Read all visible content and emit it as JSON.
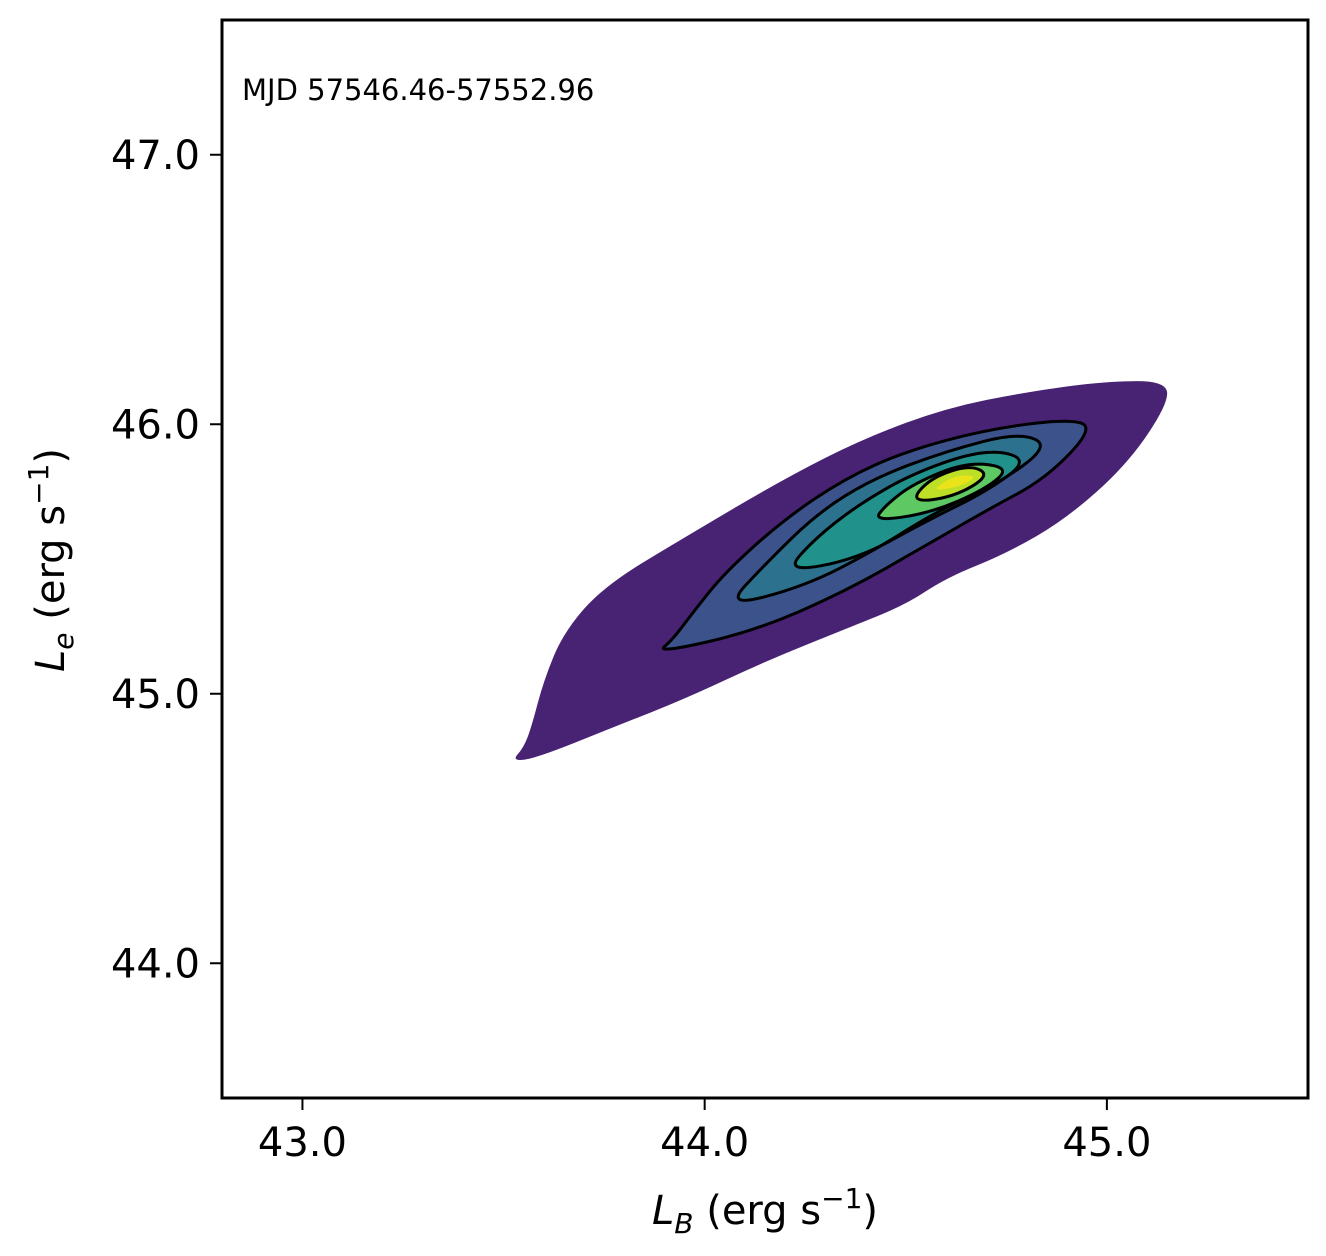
{
  "chart_data": {
    "type": "contour",
    "annotation": "MJD 57546.46-57552.96",
    "xlabel": {
      "symbol": "L",
      "subscript": "B",
      "unit": " (erg s",
      "exponent": "−1",
      "close": ")"
    },
    "ylabel": {
      "symbol": "L",
      "subscript": "e",
      "unit": " (erg s",
      "exponent": "−1",
      "close": ")"
    },
    "xlim": [
      42.8,
      45.5
    ],
    "ylim": [
      43.5,
      47.5
    ],
    "xticks": [
      43.0,
      44.0,
      45.0
    ],
    "xtick_labels": [
      "43.0",
      "44.0",
      "45.0"
    ],
    "yticks": [
      44.0,
      45.0,
      46.0,
      47.0
    ],
    "ytick_labels": [
      "44.0",
      "45.0",
      "46.0",
      "47.0"
    ],
    "colormap": "viridis",
    "grid": false,
    "levels": [
      {
        "level": 1,
        "fill": "#482374",
        "outlined": false,
        "polygon": [
          [
            43.52,
            44.75
          ],
          [
            43.58,
            44.76
          ],
          [
            43.78,
            44.88
          ],
          [
            43.95,
            44.98
          ],
          [
            44.15,
            45.12
          ],
          [
            44.35,
            45.24
          ],
          [
            44.5,
            45.33
          ],
          [
            44.6,
            45.43
          ],
          [
            44.75,
            45.52
          ],
          [
            44.9,
            45.65
          ],
          [
            45.05,
            45.85
          ],
          [
            45.15,
            46.07
          ],
          [
            45.15,
            46.16
          ],
          [
            45.0,
            46.16
          ],
          [
            44.8,
            46.12
          ],
          [
            44.6,
            46.06
          ],
          [
            44.4,
            45.95
          ],
          [
            44.2,
            45.8
          ],
          [
            43.95,
            45.58
          ],
          [
            43.75,
            45.4
          ],
          [
            43.65,
            45.23
          ],
          [
            43.6,
            45.05
          ],
          [
            43.57,
            44.88
          ],
          [
            43.55,
            44.8
          ]
        ]
      },
      {
        "level": 2,
        "fill": "#3b528b",
        "outlined": true,
        "polygon": [
          [
            43.88,
            45.15
          ],
          [
            44.12,
            45.23
          ],
          [
            44.35,
            45.38
          ],
          [
            44.55,
            45.55
          ],
          [
            44.7,
            45.68
          ],
          [
            44.85,
            45.8
          ],
          [
            44.97,
            45.99
          ],
          [
            44.9,
            46.02
          ],
          [
            44.7,
            45.98
          ],
          [
            44.5,
            45.9
          ],
          [
            44.35,
            45.8
          ],
          [
            44.2,
            45.65
          ],
          [
            44.05,
            45.45
          ],
          [
            43.97,
            45.3
          ],
          [
            43.92,
            45.2
          ]
        ]
      },
      {
        "level": 3,
        "fill": "#2c728e",
        "outlined": true,
        "polygon": [
          [
            44.05,
            45.32
          ],
          [
            44.25,
            45.4
          ],
          [
            44.42,
            45.53
          ],
          [
            44.58,
            45.68
          ],
          [
            44.72,
            45.77
          ],
          [
            44.86,
            45.92
          ],
          [
            44.78,
            45.97
          ],
          [
            44.6,
            45.9
          ],
          [
            44.42,
            45.8
          ],
          [
            44.28,
            45.67
          ],
          [
            44.15,
            45.48
          ]
        ]
      },
      {
        "level": 4,
        "fill": "#21918c",
        "outlined": true,
        "polygon": [
          [
            44.2,
            45.45
          ],
          [
            44.38,
            45.5
          ],
          [
            44.55,
            45.64
          ],
          [
            44.7,
            45.75
          ],
          [
            44.81,
            45.87
          ],
          [
            44.7,
            45.91
          ],
          [
            44.52,
            45.82
          ],
          [
            44.38,
            45.7
          ],
          [
            44.27,
            45.57
          ]
        ]
      },
      {
        "level": 5,
        "fill": "#5ec962",
        "outlined": true,
        "polygon": [
          [
            44.42,
            45.64
          ],
          [
            44.56,
            45.67
          ],
          [
            44.7,
            45.76
          ],
          [
            44.76,
            45.84
          ],
          [
            44.65,
            45.86
          ],
          [
            44.52,
            45.78
          ],
          [
            44.45,
            45.7
          ]
        ]
      },
      {
        "level": 6,
        "fill": "#bddf26",
        "outlined": true,
        "polygon": [
          [
            44.51,
            45.71
          ],
          [
            44.62,
            45.73
          ],
          [
            44.71,
            45.81
          ],
          [
            44.66,
            45.85
          ],
          [
            44.56,
            45.8
          ]
        ]
      },
      {
        "level": 7,
        "fill": "#e8e419",
        "outlined": false,
        "polygon": [
          [
            44.56,
            45.75
          ],
          [
            44.64,
            45.77
          ],
          [
            44.68,
            45.81
          ],
          [
            44.62,
            45.81
          ]
        ]
      }
    ],
    "contour_line_color": "#000000"
  }
}
